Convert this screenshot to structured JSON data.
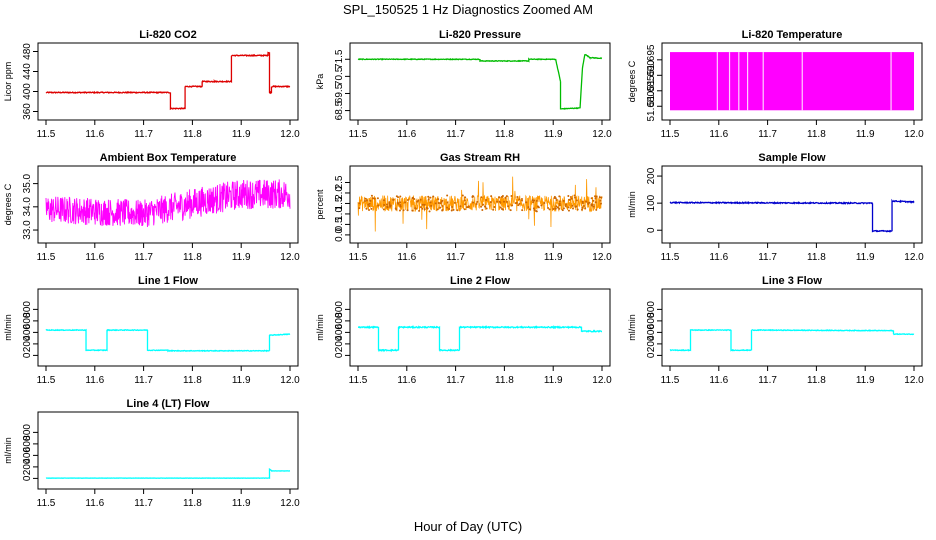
{
  "title": "SPL_150525  1 Hz Diagnostics Zoomed AM",
  "xlabel": "Hour of Day (UTC)",
  "chart_data": [
    {
      "type": "line",
      "title": "Li-820 CO2",
      "ylabel": "Licor ppm",
      "color": "#dd0000",
      "xlim": [
        11.5,
        12.0
      ],
      "xticks": [
        11.5,
        11.6,
        11.7,
        11.8,
        11.9,
        12.0
      ],
      "xtick_labels": [
        "11.5",
        "11.6",
        "11.7",
        "11.8",
        "11.9",
        "12.0"
      ],
      "ylim": [
        355,
        485
      ],
      "yticks": [
        360,
        400,
        440,
        480
      ],
      "ytick_labels": [
        "360",
        "400",
        "440",
        "480"
      ],
      "noise": 1,
      "series": [
        {
          "x": [
            11.5,
            11.755,
            11.755,
            11.785,
            11.785,
            11.82,
            11.82,
            11.845,
            11.845,
            11.88,
            11.88,
            11.955,
            11.955,
            11.958,
            11.958,
            11.962,
            11.962,
            12.0
          ],
          "y": [
            398,
            398,
            366,
            366,
            410,
            410,
            420,
            420,
            420,
            420,
            472,
            472,
            478,
            478,
            398,
            398,
            410,
            410
          ]
        }
      ]
    },
    {
      "type": "line",
      "title": "Li-820 Pressure",
      "ylabel": "kPa",
      "color": "#00bb00",
      "xlim": [
        11.5,
        12.0
      ],
      "xticks": [
        11.5,
        11.6,
        11.7,
        11.8,
        11.9,
        12.0
      ],
      "xtick_labels": [
        "11.5",
        "11.6",
        "11.7",
        "11.8",
        "11.9",
        "12.0"
      ],
      "ylim": [
        68.3,
        72.1
      ],
      "yticks": [
        68.5,
        69.5,
        70.5,
        71.5
      ],
      "ytick_labels": [
        "68.5",
        "69.5",
        "70.5",
        "71.5"
      ],
      "noise": 0.02,
      "series": [
        {
          "x": [
            11.5,
            11.75,
            11.75,
            11.85,
            11.85,
            11.905,
            11.915,
            11.915,
            11.955,
            11.96,
            11.965,
            11.975,
            12.0
          ],
          "y": [
            71.5,
            71.5,
            71.4,
            71.4,
            71.5,
            71.5,
            70.2,
            68.6,
            68.65,
            71.0,
            71.8,
            71.6,
            71.55
          ]
        }
      ]
    },
    {
      "type": "line",
      "title": "Li-820 Temperature",
      "ylabel": "degrees C",
      "color": "#ff00ff",
      "xlim": [
        11.5,
        12.0
      ],
      "xticks": [
        11.5,
        11.6,
        11.7,
        11.8,
        11.9,
        12.0
      ],
      "xtick_labels": [
        "11.5",
        "11.6",
        "11.7",
        "11.8",
        "11.9",
        "12.0"
      ],
      "ylim": [
        51.6775,
        51.6985
      ],
      "yticks": [
        51.68,
        51.685,
        51.69,
        51.695
      ],
      "ytick_labels": [
        "51.680",
        "51.685",
        "51.690",
        "51.695"
      ],
      "fill_band": [
        51.6787,
        51.6975
      ],
      "x_range": [
        11.5,
        12.0
      ],
      "gaps": [
        11.597,
        11.622,
        11.641,
        11.659,
        11.691,
        11.771,
        11.953
      ]
    },
    {
      "type": "line",
      "title": "Ambient Box Temperature",
      "ylabel": "degrees C",
      "color": "#ff00ff",
      "xlim": [
        11.5,
        12.0
      ],
      "xticks": [
        11.5,
        11.6,
        11.7,
        11.8,
        11.9,
        12.0
      ],
      "xtick_labels": [
        "11.5",
        "11.6",
        "11.7",
        "11.8",
        "11.9",
        "12.0"
      ],
      "ylim": [
        32.7,
        35.5
      ],
      "yticks": [
        33.0,
        34.0,
        35.0
      ],
      "ytick_labels": [
        "33.0",
        "34.0",
        "35.0"
      ],
      "band_lo": [
        [
          11.5,
          33.3
        ],
        [
          11.7,
          33.1
        ],
        [
          11.8,
          33.5
        ],
        [
          11.9,
          33.9
        ],
        [
          12.0,
          33.9
        ]
      ],
      "band_hi": [
        [
          11.5,
          34.5
        ],
        [
          11.7,
          34.3
        ],
        [
          11.8,
          34.8
        ],
        [
          11.9,
          35.2
        ],
        [
          12.0,
          35.2
        ]
      ]
    },
    {
      "type": "scatter",
      "title": "Gas Stream RH",
      "ylabel": "percent",
      "color": "#ff9900",
      "xlim": [
        11.5,
        12.0
      ],
      "xticks": [
        11.5,
        11.6,
        11.7,
        11.8,
        11.9,
        12.0
      ],
      "xtick_labels": [
        "11.5",
        "11.6",
        "11.7",
        "11.8",
        "11.9",
        "12.0"
      ],
      "ylim": [
        -0.1,
        3.0
      ],
      "yticks": [
        0.0,
        0.5,
        1.0,
        1.5,
        2.0,
        2.5
      ],
      "ytick_labels": [
        "0.0",
        "0.5",
        "1.0",
        "1.5",
        "2.0",
        "2.5"
      ],
      "center": 1.5,
      "spread": 0.38
    },
    {
      "type": "line",
      "title": "Sample Flow",
      "ylabel": "ml/min",
      "color": "#0000cc",
      "xlim": [
        11.5,
        12.0
      ],
      "xticks": [
        11.5,
        11.6,
        11.7,
        11.8,
        11.9,
        12.0
      ],
      "xtick_labels": [
        "11.5",
        "11.6",
        "11.7",
        "11.8",
        "11.9",
        "12.0"
      ],
      "ylim": [
        -25,
        215
      ],
      "yticks": [
        0,
        100,
        200
      ],
      "ytick_labels": [
        "0",
        "100",
        "200"
      ],
      "noise": 2,
      "series": [
        {
          "x": [
            11.5,
            11.915,
            11.915,
            11.955,
            11.955,
            12.0
          ],
          "y": [
            102,
            100,
            -3,
            -3,
            108,
            104
          ]
        }
      ]
    },
    {
      "type": "line",
      "title": "Line 1 Flow",
      "ylabel": "ml/min",
      "color": "#00ffff",
      "xlim": [
        11.5,
        12.0
      ],
      "xticks": [
        11.5,
        11.6,
        11.7,
        11.8,
        11.9,
        12.0
      ],
      "xtick_labels": [
        "11.5",
        "11.6",
        "11.7",
        "11.8",
        "11.9",
        "12.0"
      ],
      "ylim": [
        -80,
        1050
      ],
      "yticks": [
        0,
        200,
        400,
        600,
        800
      ],
      "ytick_labels": [
        "0",
        "200",
        "400",
        "600",
        "800"
      ],
      "noise": 6,
      "series": [
        {
          "x": [
            11.5,
            11.582,
            11.582,
            11.625,
            11.625,
            11.708,
            11.708,
            11.75,
            11.75,
            11.958,
            11.958,
            12.0
          ],
          "y": [
            440,
            440,
            90,
            90,
            440,
            440,
            90,
            90,
            80,
            80,
            350,
            370
          ]
        }
      ]
    },
    {
      "type": "line",
      "title": "Line 2 Flow",
      "ylabel": "ml/min",
      "color": "#00ffff",
      "xlim": [
        11.5,
        12.0
      ],
      "xticks": [
        11.5,
        11.6,
        11.7,
        11.8,
        11.9,
        12.0
      ],
      "xtick_labels": [
        "11.5",
        "11.6",
        "11.7",
        "11.8",
        "11.9",
        "12.0"
      ],
      "ylim": [
        -80,
        1050
      ],
      "yticks": [
        0,
        200,
        400,
        600,
        800
      ],
      "ytick_labels": [
        "0",
        "200",
        "400",
        "600",
        "800"
      ],
      "noise": 10,
      "series": [
        {
          "x": [
            11.5,
            11.542,
            11.542,
            11.583,
            11.583,
            11.667,
            11.667,
            11.708,
            11.708,
            11.958,
            11.958,
            12.0
          ],
          "y": [
            490,
            490,
            90,
            90,
            490,
            490,
            90,
            90,
            490,
            490,
            420,
            420
          ]
        }
      ]
    },
    {
      "type": "line",
      "title": "Line 3 Flow",
      "ylabel": "ml/min",
      "color": "#00ffff",
      "xlim": [
        11.5,
        12.0
      ],
      "xticks": [
        11.5,
        11.6,
        11.7,
        11.8,
        11.9,
        12.0
      ],
      "xtick_labels": [
        "11.5",
        "11.6",
        "11.7",
        "11.8",
        "11.9",
        "12.0"
      ],
      "ylim": [
        -80,
        1050
      ],
      "yticks": [
        0,
        200,
        400,
        600,
        800
      ],
      "ytick_labels": [
        "0",
        "200",
        "400",
        "600",
        "800"
      ],
      "noise": 6,
      "series": [
        {
          "x": [
            11.5,
            11.542,
            11.542,
            11.625,
            11.625,
            11.667,
            11.667,
            11.958,
            11.958,
            12.0
          ],
          "y": [
            90,
            90,
            440,
            440,
            90,
            90,
            440,
            430,
            370,
            370
          ]
        }
      ]
    },
    {
      "type": "line",
      "title": "Line 4 (LT) Flow",
      "ylabel": "ml/min",
      "color": "#00ffff",
      "xlim": [
        11.5,
        12.0
      ],
      "xticks": [
        11.5,
        11.6,
        11.7,
        11.8,
        11.9,
        12.0
      ],
      "xtick_labels": [
        "11.5",
        "11.6",
        "11.7",
        "11.8",
        "11.9",
        "12.0"
      ],
      "ylim": [
        -80,
        1050
      ],
      "yticks": [
        0,
        200,
        400,
        600,
        800
      ],
      "ytick_labels": [
        "0",
        "200",
        "400",
        "600",
        "800"
      ],
      "noise": 2,
      "series": [
        {
          "x": [
            11.5,
            11.958,
            11.958,
            11.963,
            12.0
          ],
          "y": [
            5,
            5,
            160,
            130,
            130
          ]
        }
      ]
    }
  ]
}
